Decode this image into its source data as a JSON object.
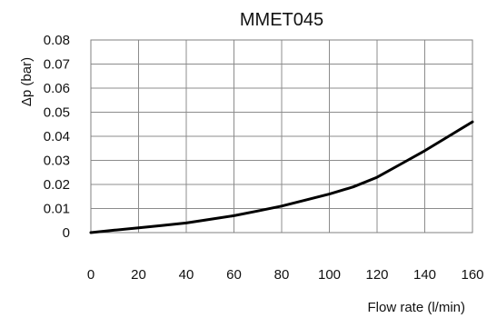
{
  "chart_data": {
    "type": "line",
    "title": "MMET045",
    "xlabel": "Flow rate (l/min)",
    "ylabel": "Δp (bar)",
    "xlim": [
      0,
      160
    ],
    "ylim": [
      0,
      0.08
    ],
    "x_ticks": [
      0,
      20,
      40,
      60,
      80,
      100,
      120,
      140,
      160
    ],
    "x_tick_labels": [
      "0",
      "20",
      "40",
      "60",
      "80",
      "100",
      "120",
      "140",
      "160"
    ],
    "y_ticks": [
      0,
      0.01,
      0.02,
      0.03,
      0.04,
      0.05,
      0.06,
      0.07,
      0.08
    ],
    "y_tick_labels": [
      "0",
      "0.01",
      "0.02",
      "0.03",
      "0.04",
      "0.05",
      "0.06",
      "0.07",
      "0.08"
    ],
    "grid": true,
    "legend": "none",
    "series": [
      {
        "x": [
          0,
          10,
          20,
          30,
          40,
          50,
          60,
          70,
          80,
          90,
          100,
          110,
          120,
          130,
          140,
          150,
          160
        ],
        "y": [
          0,
          0.001,
          0.002,
          0.003,
          0.004,
          0.0055,
          0.007,
          0.009,
          0.011,
          0.0135,
          0.016,
          0.019,
          0.023,
          0.0285,
          0.034,
          0.04,
          0.046
        ],
        "color": "#000000"
      }
    ]
  }
}
